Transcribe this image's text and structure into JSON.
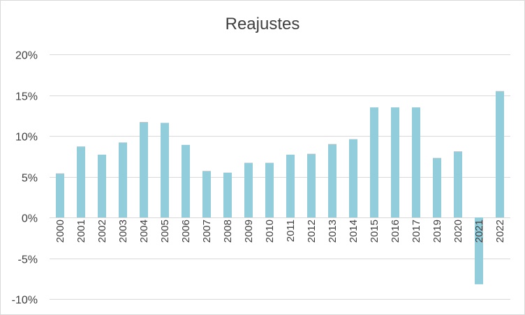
{
  "chart_data": {
    "type": "bar",
    "title": "Reajustes",
    "xlabel": "",
    "ylabel": "",
    "categories": [
      "2000",
      "2001",
      "2002",
      "2003",
      "2004",
      "2005",
      "2006",
      "2007",
      "2008",
      "2009",
      "2010",
      "2011",
      "2012",
      "2013",
      "2014",
      "2015",
      "2016",
      "2017",
      "2019",
      "2020",
      "2021",
      "2022"
    ],
    "values": [
      5.4,
      8.7,
      7.7,
      9.2,
      11.7,
      11.6,
      8.9,
      5.7,
      5.5,
      6.7,
      6.7,
      7.7,
      7.8,
      9.0,
      9.6,
      13.5,
      13.5,
      13.5,
      7.3,
      8.1,
      -8.2,
      15.5
    ],
    "ylim": [
      -10,
      20
    ],
    "yticks": [
      20,
      15,
      10,
      5,
      0,
      -5,
      -10
    ],
    "ytick_labels": [
      "20%",
      "15%",
      "10%",
      "5%",
      "0%",
      "-5%",
      "-10%"
    ],
    "grid": true,
    "bar_color": "#92CDDC",
    "grid_color": "#D9D9D9",
    "text_color": "#404040"
  }
}
